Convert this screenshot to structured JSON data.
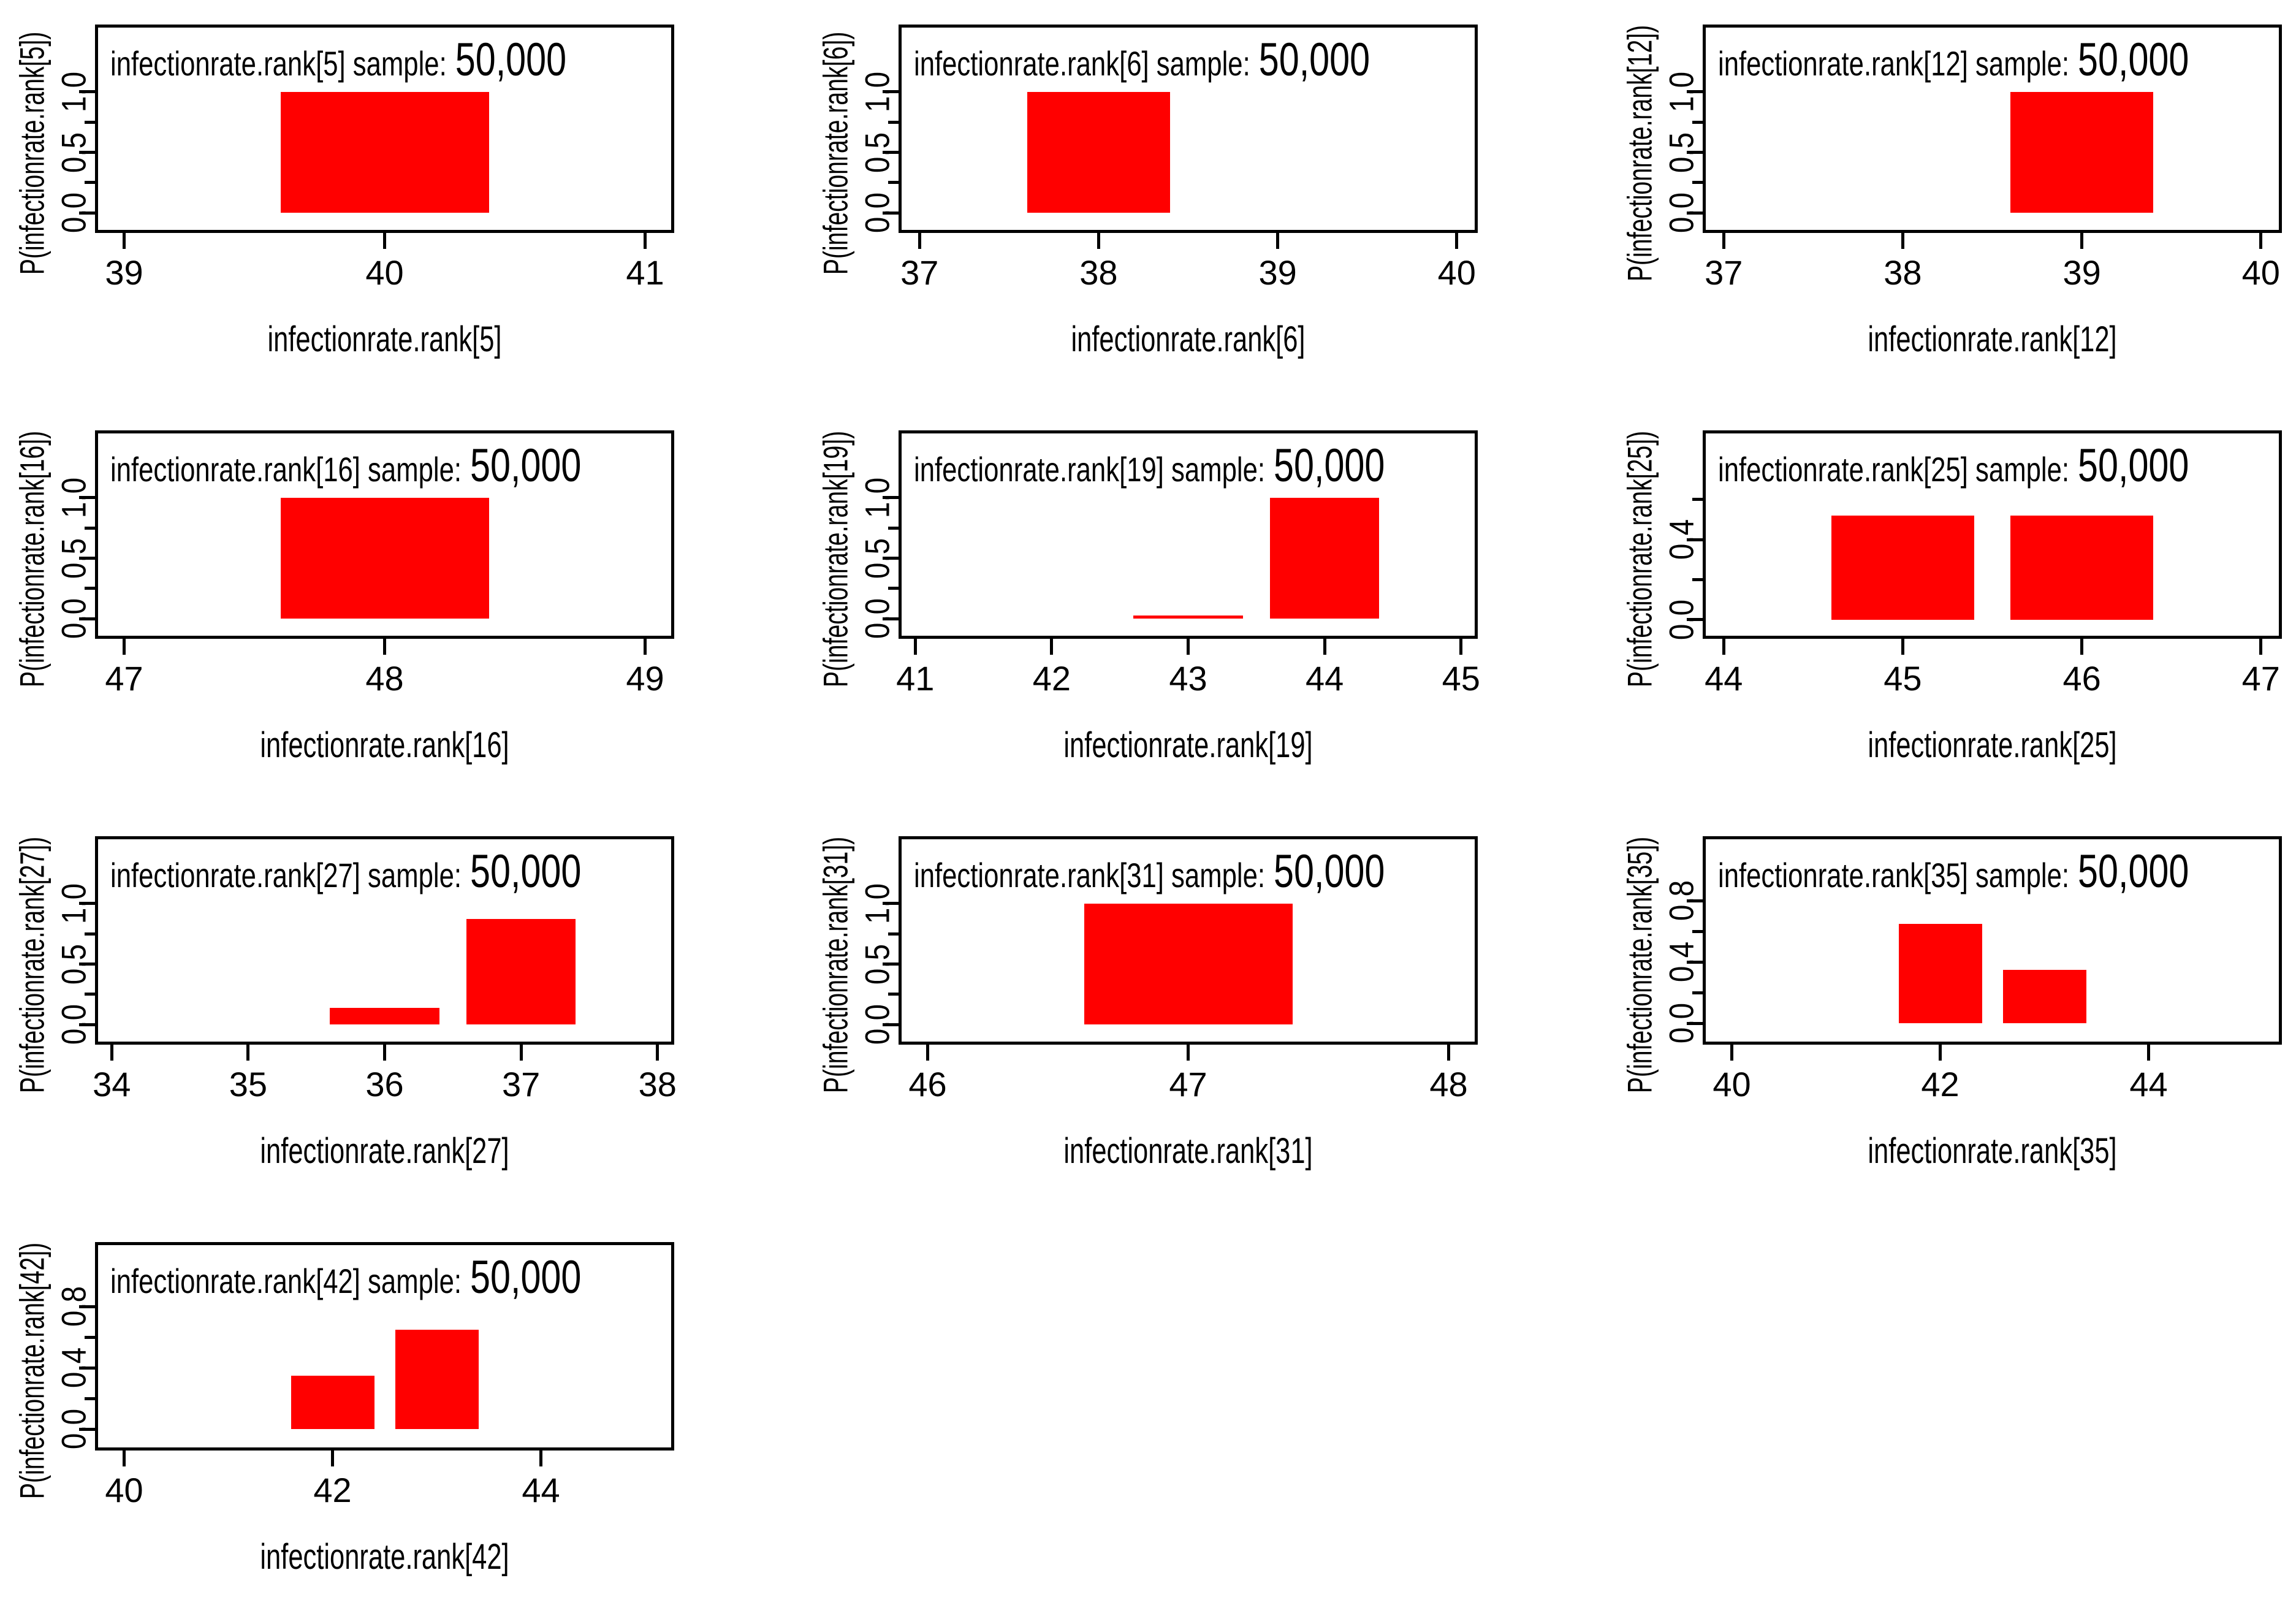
{
  "colors": {
    "bar": "#ff0000",
    "frame": "#000000",
    "text": "#000000",
    "background": "#ffffff"
  },
  "sample_label": "50,000",
  "chart_data": [
    {
      "type": "bar",
      "title": "infectionrate.rank[5] sample:",
      "sample": "50,000",
      "xlabel": "infectionrate.rank[5]",
      "ylabel": "P(infectionrate.rank[5])",
      "x_ticks": [
        39,
        40,
        41
      ],
      "x_range": [
        38.9,
        41.1
      ],
      "y_ticks_major": [
        {
          "v": 0.0,
          "label": "0.0"
        },
        {
          "v": 0.5,
          "label": "0.5"
        },
        {
          "v": 1.0,
          "label": "1.0"
        }
      ],
      "y_ticks_minor": [
        0.25,
        0.75
      ],
      "y_range": [
        -0.14,
        1.53
      ],
      "bar_width": 0.8,
      "bars": [
        {
          "x": 40,
          "p": 1.0
        }
      ]
    },
    {
      "type": "bar",
      "title": "infectionrate.rank[6] sample:",
      "sample": "50,000",
      "xlabel": "infectionrate.rank[6]",
      "ylabel": "P(infectionrate.rank[6])",
      "x_ticks": [
        37,
        38,
        39,
        40
      ],
      "x_range": [
        36.9,
        40.1
      ],
      "y_ticks_major": [
        {
          "v": 0.0,
          "label": "0.0"
        },
        {
          "v": 0.5,
          "label": "0.5"
        },
        {
          "v": 1.0,
          "label": "1.0"
        }
      ],
      "y_ticks_minor": [
        0.25,
        0.75
      ],
      "y_range": [
        -0.14,
        1.53
      ],
      "bar_width": 0.8,
      "bars": [
        {
          "x": 38,
          "p": 1.0
        }
      ]
    },
    {
      "type": "bar",
      "title": "infectionrate.rank[12] sample:",
      "sample": "50,000",
      "xlabel": "infectionrate.rank[12]",
      "ylabel": "P(infectionrate.rank[12])",
      "x_ticks": [
        37,
        38,
        39,
        40
      ],
      "x_range": [
        36.9,
        40.1
      ],
      "y_ticks_major": [
        {
          "v": 0.0,
          "label": "0.0"
        },
        {
          "v": 0.5,
          "label": "0.5"
        },
        {
          "v": 1.0,
          "label": "1.0"
        }
      ],
      "y_ticks_minor": [
        0.25,
        0.75
      ],
      "y_range": [
        -0.14,
        1.53
      ],
      "bar_width": 0.8,
      "bars": [
        {
          "x": 39,
          "p": 1.0
        }
      ]
    },
    {
      "type": "bar",
      "title": "infectionrate.rank[16] sample:",
      "sample": "50,000",
      "xlabel": "infectionrate.rank[16]",
      "ylabel": "P(infectionrate.rank[16])",
      "x_ticks": [
        47,
        48,
        49
      ],
      "x_range": [
        46.9,
        49.1
      ],
      "y_ticks_major": [
        {
          "v": 0.0,
          "label": "0.0"
        },
        {
          "v": 0.5,
          "label": "0.5"
        },
        {
          "v": 1.0,
          "label": "1.0"
        }
      ],
      "y_ticks_minor": [
        0.25,
        0.75
      ],
      "y_range": [
        -0.14,
        1.53
      ],
      "bar_width": 0.8,
      "bars": [
        {
          "x": 48,
          "p": 1.0
        }
      ]
    },
    {
      "type": "bar",
      "title": "infectionrate.rank[19] sample:",
      "sample": "50,000",
      "xlabel": "infectionrate.rank[19]",
      "ylabel": "P(infectionrate.rank[19])",
      "x_ticks": [
        41,
        42,
        43,
        44,
        45
      ],
      "x_range": [
        40.9,
        45.1
      ],
      "y_ticks_major": [
        {
          "v": 0.0,
          "label": "0.0"
        },
        {
          "v": 0.5,
          "label": "0.5"
        },
        {
          "v": 1.0,
          "label": "1.0"
        }
      ],
      "y_ticks_minor": [
        0.25,
        0.75
      ],
      "y_range": [
        -0.14,
        1.53
      ],
      "bar_width": 0.8,
      "bars": [
        {
          "x": 43,
          "p": 0.025
        },
        {
          "x": 44,
          "p": 1.0
        }
      ]
    },
    {
      "type": "bar",
      "title": "infectionrate.rank[25] sample:",
      "sample": "50,000",
      "xlabel": "infectionrate.rank[25]",
      "ylabel": "P(infectionrate.rank[25])",
      "x_ticks": [
        44,
        45,
        46,
        47
      ],
      "x_range": [
        43.9,
        47.1
      ],
      "y_ticks_major": [
        {
          "v": 0.0,
          "label": "0.0"
        },
        {
          "v": 0.4,
          "label": "0.4"
        }
      ],
      "y_ticks_minor": [
        0.2,
        0.6
      ],
      "y_range": [
        -0.08,
        0.93
      ],
      "bar_width": 0.8,
      "bars": [
        {
          "x": 45,
          "p": 0.52
        },
        {
          "x": 46,
          "p": 0.52
        }
      ]
    },
    {
      "type": "bar",
      "title": "infectionrate.rank[27] sample:",
      "sample": "50,000",
      "xlabel": "infectionrate.rank[27]",
      "ylabel": "P(infectionrate.rank[27])",
      "x_ticks": [
        34,
        35,
        36,
        37,
        38
      ],
      "x_range": [
        33.9,
        38.1
      ],
      "y_ticks_major": [
        {
          "v": 0.0,
          "label": "0.0"
        },
        {
          "v": 0.5,
          "label": "0.5"
        },
        {
          "v": 1.0,
          "label": "1.0"
        }
      ],
      "y_ticks_minor": [
        0.25,
        0.75
      ],
      "y_range": [
        -0.14,
        1.53
      ],
      "bar_width": 0.8,
      "bars": [
        {
          "x": 36,
          "p": 0.14
        },
        {
          "x": 37,
          "p": 0.87
        }
      ]
    },
    {
      "type": "bar",
      "title": "infectionrate.rank[31] sample:",
      "sample": "50,000",
      "xlabel": "infectionrate.rank[31]",
      "ylabel": "P(infectionrate.rank[31])",
      "x_ticks": [
        46,
        47,
        48
      ],
      "x_range": [
        45.9,
        48.1
      ],
      "y_ticks_major": [
        {
          "v": 0.0,
          "label": "0.0"
        },
        {
          "v": 0.5,
          "label": "0.5"
        },
        {
          "v": 1.0,
          "label": "1.0"
        }
      ],
      "y_ticks_minor": [
        0.25,
        0.75
      ],
      "y_range": [
        -0.14,
        1.53
      ],
      "bar_width": 0.8,
      "bars": [
        {
          "x": 47,
          "p": 1.0
        }
      ]
    },
    {
      "type": "bar",
      "title": "infectionrate.rank[35] sample:",
      "sample": "50,000",
      "xlabel": "infectionrate.rank[35]",
      "ylabel": "P(infectionrate.rank[35])",
      "x_ticks": [
        40,
        42,
        44
      ],
      "x_range": [
        39.75,
        45.25
      ],
      "y_ticks_major": [
        {
          "v": 0.0,
          "label": "0.0"
        },
        {
          "v": 0.4,
          "label": "0.4"
        },
        {
          "v": 0.8,
          "label": "0.8"
        }
      ],
      "y_ticks_minor": [
        0.2,
        0.6
      ],
      "y_range": [
        -0.12,
        1.2
      ],
      "bar_width": 0.8,
      "bars": [
        {
          "x": 42,
          "p": 0.65
        },
        {
          "x": 43,
          "p": 0.35
        }
      ]
    },
    {
      "type": "bar",
      "title": "infectionrate.rank[42] sample:",
      "sample": "50,000",
      "xlabel": "infectionrate.rank[42]",
      "ylabel": "P(infectionrate.rank[42])",
      "x_ticks": [
        40,
        42,
        44
      ],
      "x_range": [
        39.75,
        45.25
      ],
      "y_ticks_major": [
        {
          "v": 0.0,
          "label": "0.0"
        },
        {
          "v": 0.4,
          "label": "0.4"
        },
        {
          "v": 0.8,
          "label": "0.8"
        }
      ],
      "y_ticks_minor": [
        0.2,
        0.6
      ],
      "y_range": [
        -0.12,
        1.2
      ],
      "bar_width": 0.8,
      "bars": [
        {
          "x": 42,
          "p": 0.35
        },
        {
          "x": 43,
          "p": 0.65
        }
      ]
    }
  ]
}
